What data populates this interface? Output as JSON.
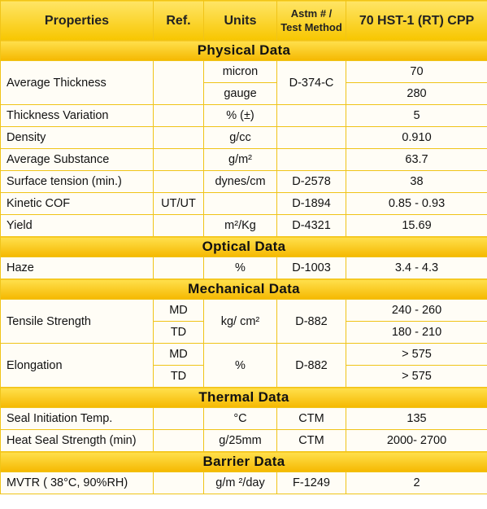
{
  "header": {
    "columns": [
      "Properties",
      "Ref.",
      "Units",
      "Astm # / Test Method",
      "70 HST-1 (RT) CPP"
    ]
  },
  "sections": [
    {
      "title": "Physical Data",
      "rows": [
        {
          "property": "Average Thickness",
          "units": [
            "micron",
            "gauge"
          ],
          "method": "D-374-C",
          "value": [
            "70",
            "280"
          ]
        },
        {
          "property": "Thickness Variation",
          "units": "% (±)",
          "value": "5"
        },
        {
          "property": "Density",
          "units": "g/cc",
          "value": "0.910"
        },
        {
          "property": "Average Substance",
          "units": "g/m²",
          "value": "63.7"
        },
        {
          "property": "Surface tension (min.)",
          "units": "dynes/cm",
          "method": "D-2578",
          "value": "38"
        },
        {
          "property": "Kinetic COF",
          "ref": "UT/UT",
          "method": "D-1894",
          "value": "0.85 - 0.93"
        },
        {
          "property": "Yield",
          "units": "m²/Kg",
          "method": "D-4321",
          "value": "15.69"
        }
      ]
    },
    {
      "title": "Optical Data",
      "rows": [
        {
          "property": "Haze",
          "units": "%",
          "method": "D-1003",
          "value": "3.4 - 4.3"
        }
      ]
    },
    {
      "title": "Mechanical Data",
      "rows": [
        {
          "property": "Tensile Strength",
          "ref": [
            "MD",
            "TD"
          ],
          "units": "kg/ cm²",
          "method": "D-882",
          "value": [
            "240 - 260",
            "180 - 210"
          ]
        },
        {
          "property": "Elongation",
          "ref": [
            "MD",
            "TD"
          ],
          "units": "%",
          "method": "D-882",
          "value": [
            "> 575",
            "> 575"
          ]
        }
      ]
    },
    {
      "title": "Thermal Data",
      "rows": [
        {
          "property": "Seal Initiation Temp.",
          "units": "°C",
          "method": "CTM",
          "value": "135"
        },
        {
          "property": "Heat Seal Strength (min)",
          "units": "g/25mm",
          "method": "CTM",
          "value": "2000- 2700"
        }
      ]
    },
    {
      "title": "Barrier Data",
      "rows": [
        {
          "property": "MVTR ( 38°C, 90%RH)",
          "units": "g/m ²/day",
          "method": "F-1249",
          "value": "2"
        }
      ]
    }
  ]
}
